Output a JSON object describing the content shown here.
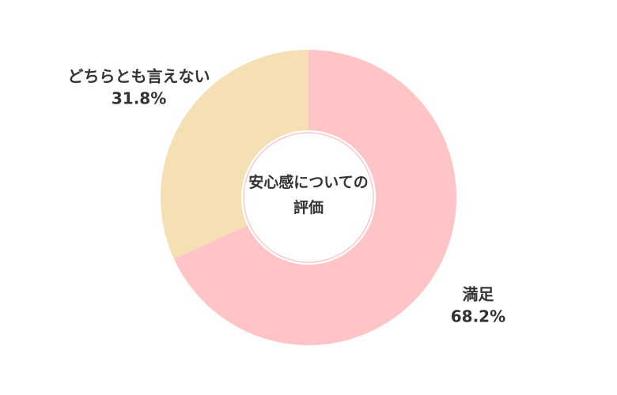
{
  "chart_data": {
    "type": "donut",
    "title": "安心感についての評価",
    "categories": [
      "満足",
      "どちらとも言えない"
    ],
    "values": [
      68.2,
      31.8
    ],
    "value_labels": [
      "68.2%",
      "31.8%"
    ],
    "colors": [
      "#fec4c6",
      "#f4e0b2"
    ]
  }
}
